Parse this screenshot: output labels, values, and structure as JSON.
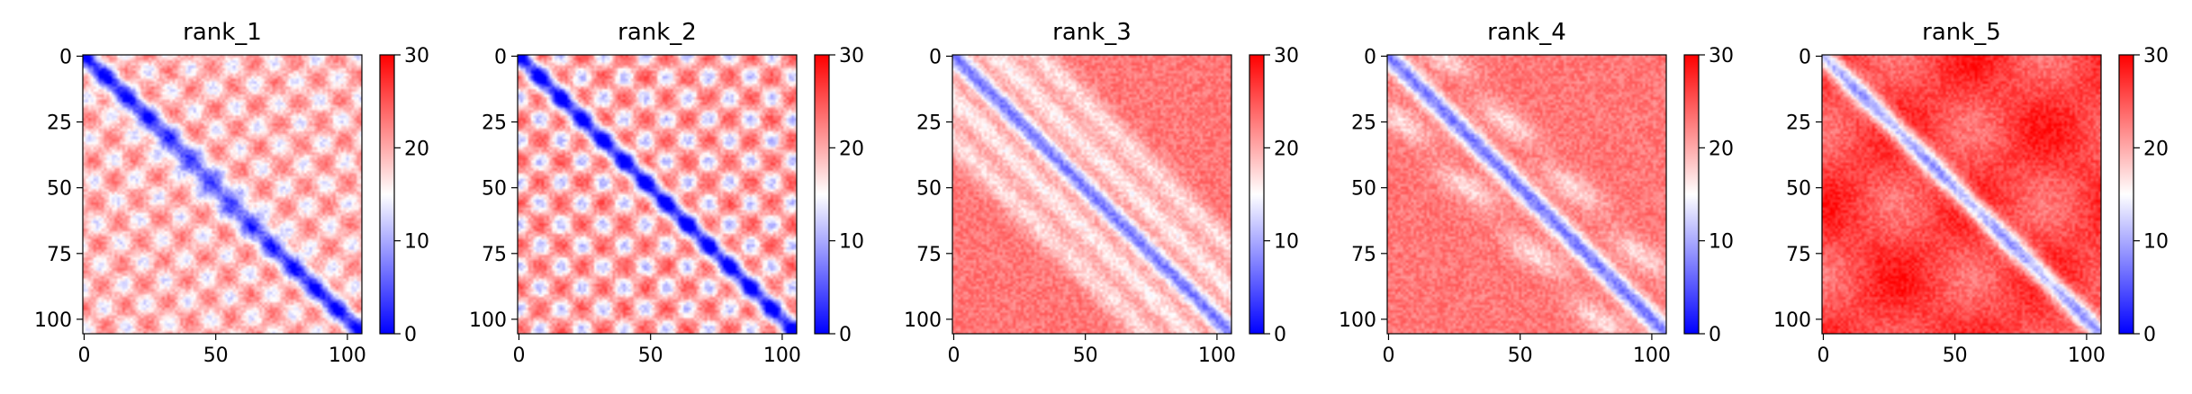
{
  "chart_data": [
    {
      "type": "heatmap",
      "title": "rank_1",
      "size": 106,
      "pattern": "periodic",
      "background": 19,
      "x_ticks": [
        0,
        50,
        100
      ],
      "y_ticks": [
        0,
        25,
        50,
        75,
        100
      ],
      "colorbar": {
        "range": [
          0,
          30
        ],
        "ticks": [
          0,
          10,
          20,
          30
        ],
        "colormap": "bwr"
      }
    },
    {
      "type": "heatmap",
      "title": "rank_2",
      "size": 106,
      "pattern": "periodic-strong",
      "background": 20,
      "x_ticks": [
        0,
        50,
        100
      ],
      "y_ticks": [
        0,
        25,
        50,
        75,
        100
      ],
      "colorbar": {
        "range": [
          0,
          30
        ],
        "ticks": [
          0,
          10,
          20,
          30
        ],
        "colormap": "bwr"
      }
    },
    {
      "type": "heatmap",
      "title": "rank_3",
      "size": 106,
      "pattern": "diagonal-bands",
      "background": 23,
      "x_ticks": [
        0,
        50,
        100
      ],
      "y_ticks": [
        0,
        25,
        50,
        75,
        100
      ],
      "colorbar": {
        "range": [
          0,
          30
        ],
        "ticks": [
          0,
          10,
          20,
          30
        ],
        "colormap": "bwr"
      }
    },
    {
      "type": "heatmap",
      "title": "rank_4",
      "size": 106,
      "pattern": "weak-bands",
      "background": 23,
      "x_ticks": [
        0,
        50,
        100
      ],
      "y_ticks": [
        0,
        25,
        50,
        75,
        100
      ],
      "colorbar": {
        "range": [
          0,
          30
        ],
        "ticks": [
          0,
          10,
          20,
          30
        ],
        "colormap": "bwr"
      }
    },
    {
      "type": "heatmap",
      "title": "rank_5",
      "size": 106,
      "pattern": "diagonal-only",
      "background": 26,
      "x_ticks": [
        0,
        50,
        100
      ],
      "y_ticks": [
        0,
        25,
        50,
        75,
        100
      ],
      "colorbar": {
        "range": [
          0,
          30
        ],
        "ticks": [
          0,
          10,
          20,
          30
        ],
        "colormap": "bwr"
      }
    }
  ]
}
